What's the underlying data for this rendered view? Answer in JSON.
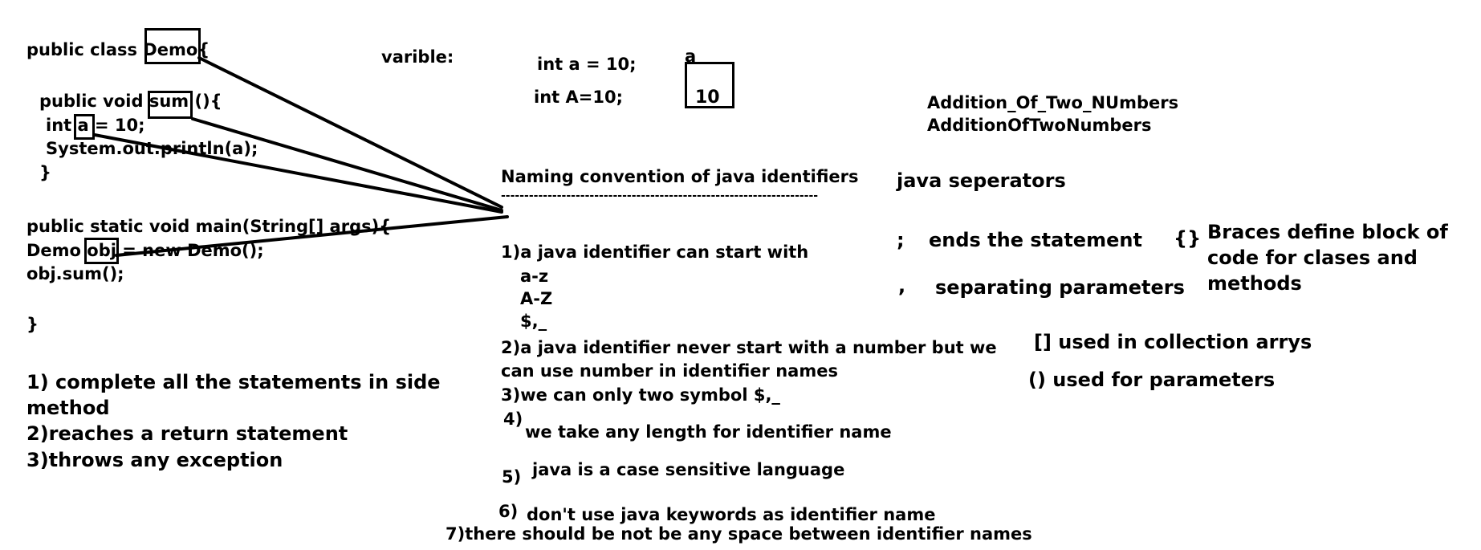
{
  "code": {
    "line1": "public class Demo{",
    "line2": "public void sum (){",
    "line3": "int a = 10;",
    "line4": "System.out.println(a);",
    "line5": "}",
    "line6": "public static void main(String[] args){",
    "line7": "Demo obj = new Demo();",
    "line8": "obj.sum();",
    "line9": "}"
  },
  "method_completion": {
    "item1a": "1) complete all the statements in side",
    "item1b": "method",
    "item2": "2)reaches a return statement",
    "item3": "3)throws any exception"
  },
  "variable": {
    "label": "varible:",
    "decl1": "int a = 10;",
    "decl2": "int A=10;",
    "box_name": "a",
    "box_value": "10"
  },
  "naming": {
    "title": "Naming convention of java identifiers",
    "underline": "--------------------------------------------------------------------",
    "r1": "1)a java identifier can start with",
    "r1a": "a-z",
    "r1b": "A-Z",
    "r1c": "$,_",
    "r2a": "2)a java identifier never start with a number but we",
    "r2b": "can use number in identifier names",
    "r3": "3)we can only two symbol $,_",
    "r4_num": "4)",
    "r4": "we take any length for identifier name",
    "r5_num": "5)",
    "r5": "java is a case sensitive language",
    "r6_num": "6)",
    "r6": "don't use java keywords as identifier name",
    "r7": "7)there should be not be any space between identifier names"
  },
  "examples": {
    "e1": "Addition_Of_Two_NUmbers",
    "e2": "AdditionOfTwoNumbers"
  },
  "separators": {
    "title": "java seperators",
    "semicolon": ";",
    "semicolon_desc": "ends the statement",
    "comma": ",",
    "comma_desc": "separating parameters",
    "braces": "{}",
    "braces_desc1": "Braces define block of",
    "braces_desc2": "code for clases and",
    "braces_desc3": "methods",
    "brackets": "[] used in collection arrys",
    "parens": "() used for parameters"
  }
}
